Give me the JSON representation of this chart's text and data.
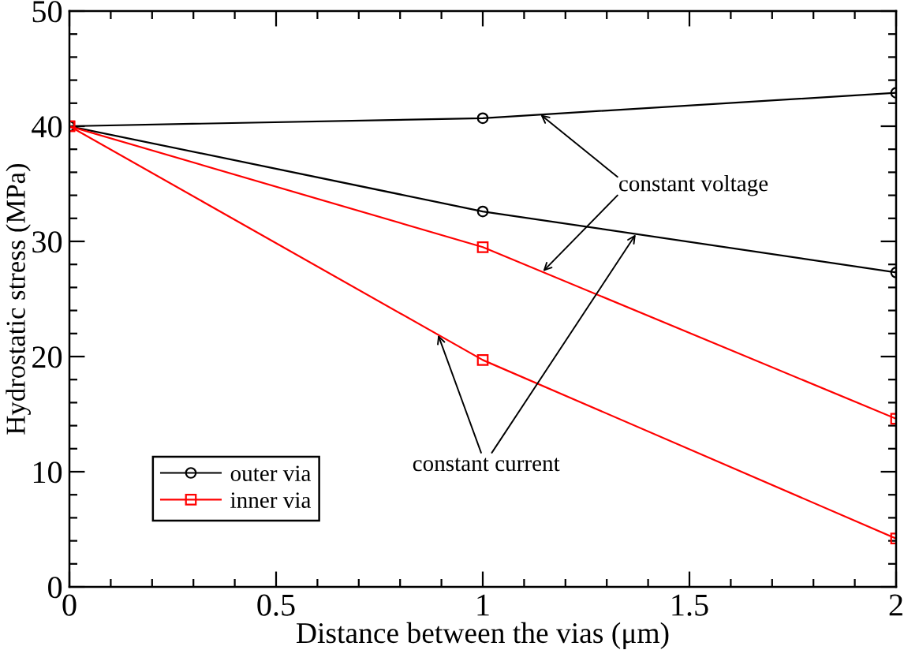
{
  "chart_data": {
    "type": "line",
    "xlabel": "Distance between the vias (μm)",
    "ylabel": "Hydrostatic stress (MPa)",
    "x": [
      0,
      1,
      2
    ],
    "series": [
      {
        "name": "outer via",
        "color": "#000000",
        "marker": "circle",
        "values": [
          40,
          40.7,
          42.9
        ]
      },
      {
        "color": "#000000",
        "marker": "circle",
        "values": [
          40,
          32.6,
          27.3
        ]
      },
      {
        "name": "inner via",
        "color": "#ff0000",
        "marker": "square",
        "values": [
          40,
          29.5,
          14.6
        ]
      },
      {
        "color": "#ff0000",
        "marker": "square",
        "values": [
          40,
          19.7,
          4.2
        ]
      }
    ],
    "xlim": [
      0,
      2
    ],
    "ylim": [
      0,
      50
    ],
    "xticks": [
      0,
      0.5,
      1,
      1.5,
      2
    ],
    "yticks": [
      0,
      10,
      20,
      30,
      40,
      50
    ],
    "annotations": [
      {
        "text": "constant voltage",
        "x": 1.14,
        "y": 41.0
      },
      {
        "text": "constant current",
        "x": 1.37,
        "y": 30.6
      }
    ],
    "grid": false,
    "legend": "bottom left",
    "line_style": "solid"
  }
}
